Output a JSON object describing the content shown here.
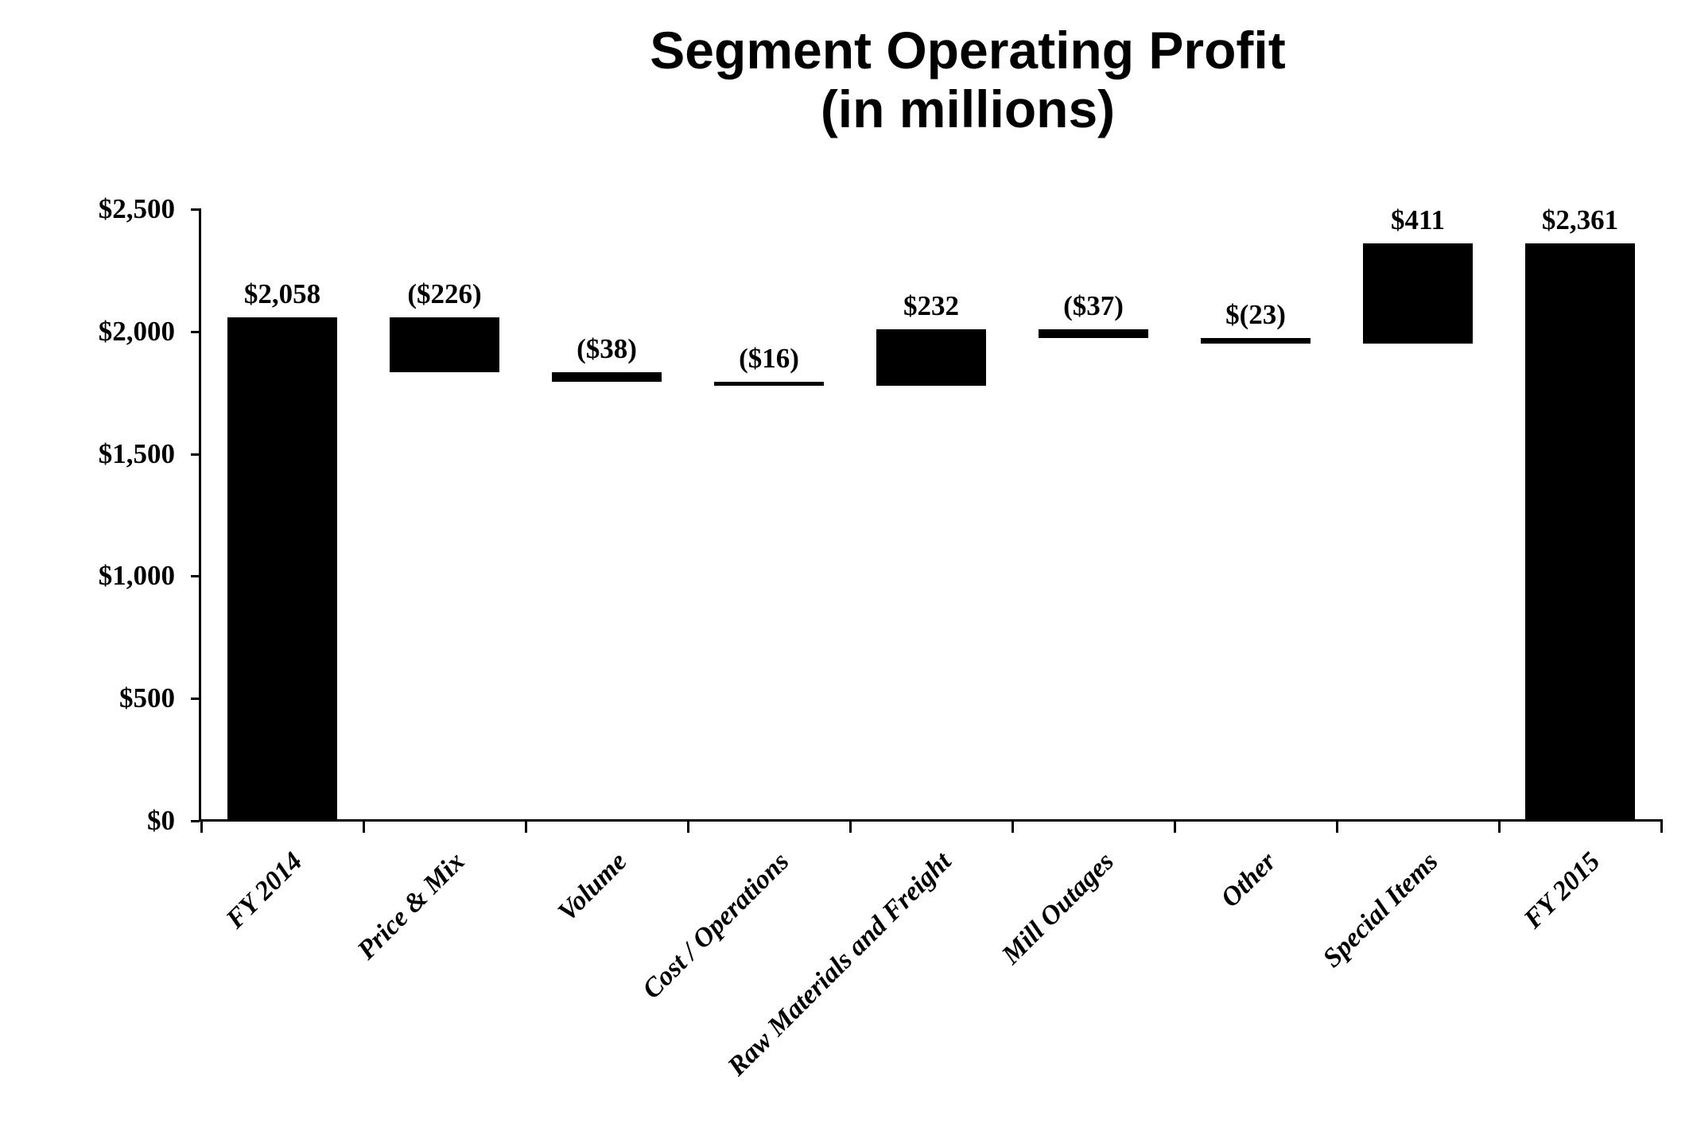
{
  "page": {
    "background": "#ffffff",
    "text_color": "#000000"
  },
  "chart_data": {
    "type": "bar",
    "variant": "waterfall",
    "title": "Segment Operating Profit",
    "subtitle": "(in millions)",
    "xlabel": "",
    "ylabel": "",
    "ylim": [
      0,
      2500
    ],
    "grid": false,
    "legend": "none",
    "bar_color": "#000000",
    "y_axis": {
      "ticks": [
        {
          "value": 0,
          "label": "$0"
        },
        {
          "value": 500,
          "label": "$500"
        },
        {
          "value": 1000,
          "label": "$1,000"
        },
        {
          "value": 1500,
          "label": "$1,500"
        },
        {
          "value": 2000,
          "label": "$2,000"
        },
        {
          "value": 2500,
          "label": "$2,500"
        }
      ]
    },
    "categories": [
      "FY 2014",
      "Price & Mix",
      "Volume",
      "Cost / Operations",
      "Raw Materials and Freight",
      "Mill Outages",
      "Other",
      "Special Items",
      "FY 2015"
    ],
    "bars": [
      {
        "category": "FY 2014",
        "kind": "total",
        "delta": 2058,
        "start": 0,
        "end": 2058,
        "value_label": "$2,058"
      },
      {
        "category": "Price & Mix",
        "kind": "decrease",
        "delta": -226,
        "start": 2058,
        "end": 1832,
        "value_label": "($226)"
      },
      {
        "category": "Volume",
        "kind": "decrease",
        "delta": -38,
        "start": 1832,
        "end": 1794,
        "value_label": "($38)"
      },
      {
        "category": "Cost / Operations",
        "kind": "decrease",
        "delta": -16,
        "start": 1794,
        "end": 1778,
        "value_label": "($16)"
      },
      {
        "category": "Raw Materials and Freight",
        "kind": "increase",
        "delta": 232,
        "start": 1778,
        "end": 2010,
        "value_label": "$232"
      },
      {
        "category": "Mill Outages",
        "kind": "decrease",
        "delta": -37,
        "start": 2010,
        "end": 1973,
        "value_label": "($37)"
      },
      {
        "category": "Other",
        "kind": "decrease",
        "delta": -23,
        "start": 1973,
        "end": 1950,
        "value_label": "$(23)"
      },
      {
        "category": "Special Items",
        "kind": "increase",
        "delta": 411,
        "start": 1950,
        "end": 2361,
        "value_label": "$411"
      },
      {
        "category": "FY 2015",
        "kind": "total",
        "delta": 2361,
        "start": 0,
        "end": 2361,
        "value_label": "$2,361"
      }
    ]
  }
}
